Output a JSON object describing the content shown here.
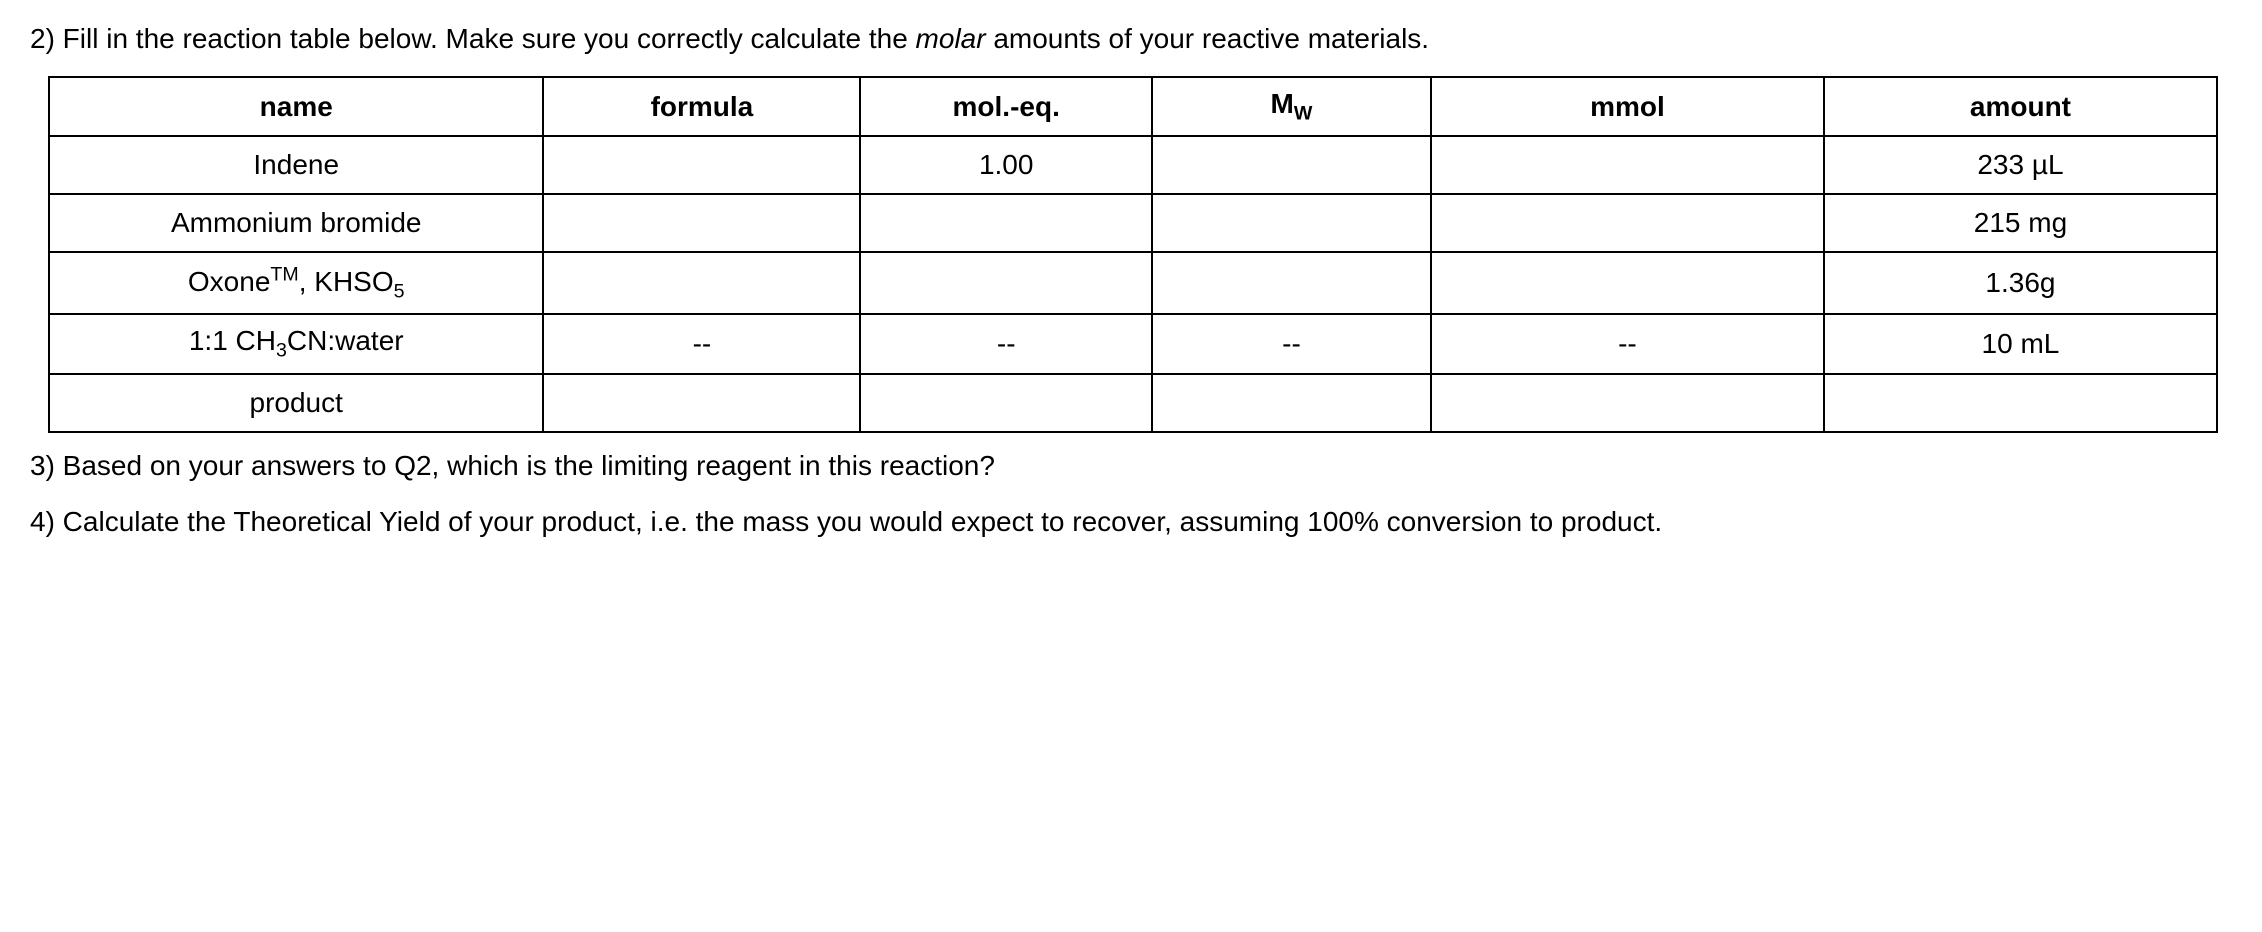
{
  "questions": {
    "q2_prefix": "2) Fill in the reaction table below. Make sure you correctly calculate the ",
    "q2_italic": "molar",
    "q2_suffix": " amounts of your reactive materials.",
    "q3": "3) Based on your answers to Q2, which is the limiting reagent in this reaction?",
    "q4": "4) Calculate the Theoretical Yield of your product, i.e. the mass you would expect to recover, assuming 100% conversion to product."
  },
  "table": {
    "headers": {
      "name": "name",
      "formula": "formula",
      "moleq": "mol.-eq.",
      "mw_prefix": "M",
      "mw_sub": "W",
      "mmol": "mmol",
      "amount": "amount"
    },
    "rows": {
      "indene": {
        "name": "Indene",
        "formula": "",
        "moleq": "1.00",
        "mw": "",
        "mmol": "",
        "amount": "233 µL"
      },
      "ammonium_bromide": {
        "name": "Ammonium bromide",
        "formula": "",
        "moleq": "",
        "mw": "",
        "mmol": "",
        "amount": "215 mg"
      },
      "oxone": {
        "name_prefix": "Oxone",
        "name_sup": "TM",
        "name_mid": ", KHSO",
        "name_sub": "5",
        "formula": "",
        "moleq": "",
        "mw": "",
        "mmol": "",
        "amount": "1.36g"
      },
      "solvent": {
        "name_prefix": "1:1 CH",
        "name_sub": "3",
        "name_suffix": "CN:water",
        "formula": "--",
        "moleq": "--",
        "mw": "--",
        "mmol": "--",
        "amount": "10 mL"
      },
      "product": {
        "name": "product",
        "formula": "",
        "moleq": "",
        "mw": "",
        "mmol": "",
        "amount": ""
      }
    }
  }
}
